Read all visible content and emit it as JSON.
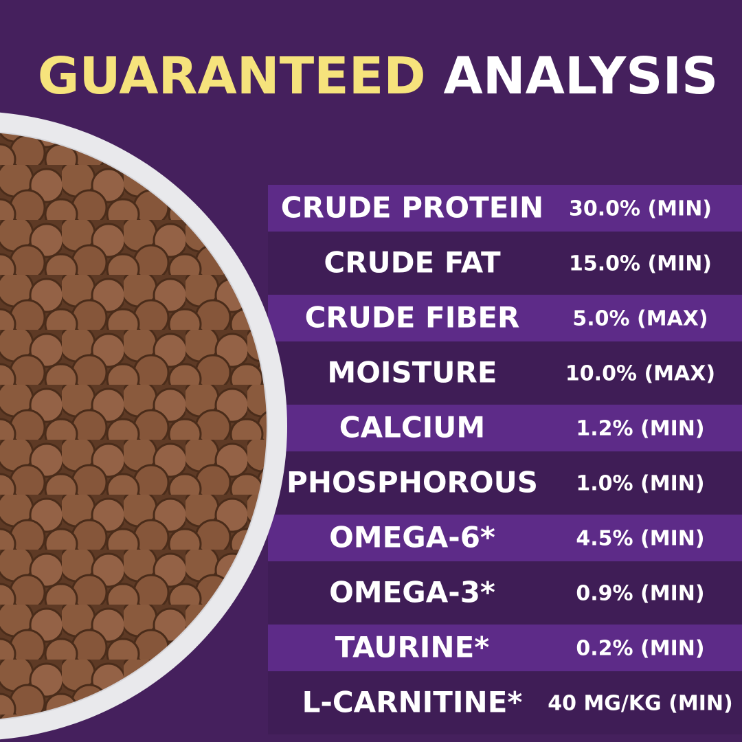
{
  "title": {
    "highlight": "GUARANTEED",
    "rest": "ANALYSIS"
  },
  "rows": [
    {
      "nutrient": "CRUDE PROTEIN",
      "amount": "30.0% (MIN)"
    },
    {
      "nutrient": "CRUDE FAT",
      "amount": "15.0% (MIN)"
    },
    {
      "nutrient": "CRUDE FIBER",
      "amount": "5.0% (MAX)"
    },
    {
      "nutrient": "MOISTURE",
      "amount": "10.0% (MAX)"
    },
    {
      "nutrient": "CALCIUM",
      "amount": "1.2% (MIN)"
    },
    {
      "nutrient": "PHOSPHOROUS",
      "amount": "1.0% (MIN)"
    },
    {
      "nutrient": "OMEGA-6*",
      "amount": "4.5% (MIN)"
    },
    {
      "nutrient": "OMEGA-3*",
      "amount": "0.9% (MIN)"
    },
    {
      "nutrient": "TAURINE*",
      "amount": "0.2% (MIN)"
    },
    {
      "nutrient": "L-CARNITINE*",
      "amount": "40 MG/KG (MIN)"
    }
  ]
}
